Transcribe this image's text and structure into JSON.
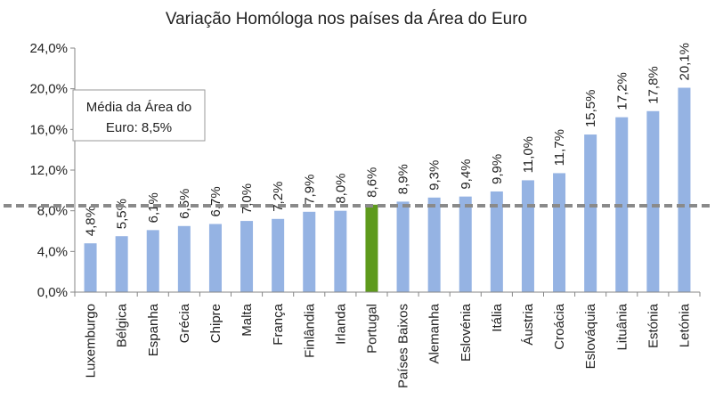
{
  "chart_data": {
    "type": "bar",
    "title": "Variação Homóloga nos países da Área do Euro",
    "categories": [
      "Luxemburgo",
      "Bélgica",
      "Espanha",
      "Grécia",
      "Chipre",
      "Malta",
      "França",
      "Finlândia",
      "Irlanda",
      "Portugal",
      "Países Baixos",
      "Alemanha",
      "Eslovénia",
      "Itália",
      "Áustria",
      "Croácia",
      "Eslováquia",
      "Lituânia",
      "Estónia",
      "Letónia"
    ],
    "values": [
      4.8,
      5.5,
      6.1,
      6.5,
      6.7,
      7.0,
      7.2,
      7.9,
      8.0,
      8.6,
      8.9,
      9.3,
      9.4,
      9.9,
      11.0,
      11.7,
      15.5,
      17.2,
      17.8,
      20.1
    ],
    "value_labels": [
      "4,8%",
      "5,5%",
      "6,1%",
      "6,5%",
      "6,7%",
      "7,0%",
      "7,2%",
      "7,9%",
      "8,0%",
      "8,6%",
      "8,9%",
      "9,3%",
      "9,4%",
      "9,9%",
      "11,0%",
      "11,7%",
      "15,5%",
      "17,2%",
      "17,8%",
      "20,1%"
    ],
    "ylim": [
      0,
      24
    ],
    "yticks": [
      0,
      4,
      8,
      12,
      16,
      20,
      24
    ],
    "ytick_labels": [
      "0,0%",
      "4,0%",
      "8,0%",
      "12,0%",
      "16,0%",
      "20,0%",
      "24,0%"
    ],
    "highlight_category": "Portugal",
    "reference_line": {
      "value": 8.5,
      "label_line1": "Média da Área do",
      "label_line2": "Euro: 8,5%"
    },
    "colors": {
      "bar": "#95b3e3",
      "highlight": "#5e9a1c",
      "reference": "#8a8a8a"
    },
    "grid": false,
    "legend": "none"
  }
}
